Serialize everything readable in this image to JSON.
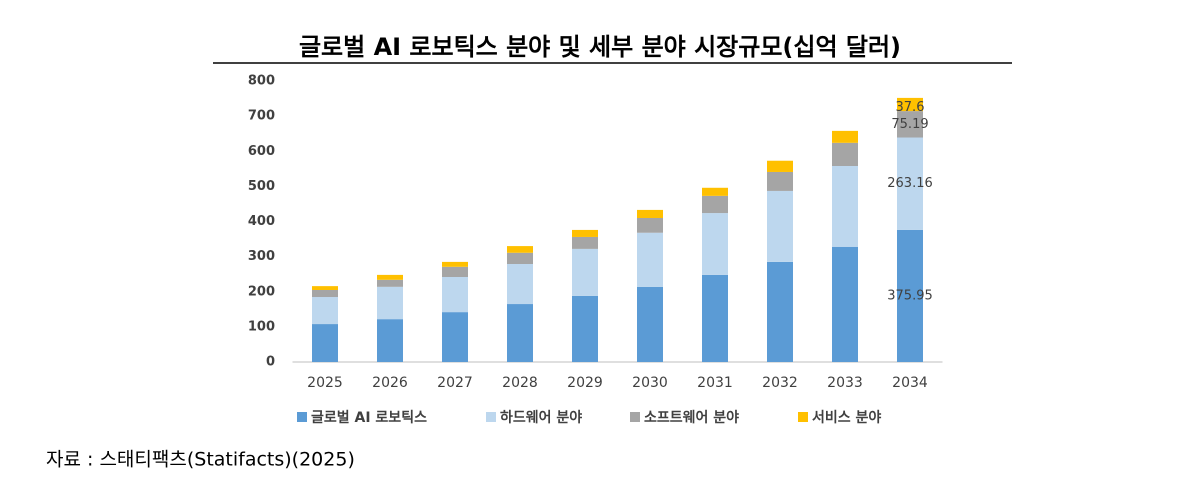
{
  "chart_data": {
    "type": "stacked_bar",
    "title": "글로벌 AI 로보틱스 분야 및 세부 분야 시장규모(십억 달러)",
    "source": "자료 : 스태티팩츠(Statifacts)(2025)",
    "categories": [
      "2025",
      "2026",
      "2027",
      "2028",
      "2029",
      "2030",
      "2031",
      "2032",
      "2033",
      "2034"
    ],
    "series": [
      {
        "name": "글로벌 AI 로보틱스",
        "color": "#5b9bd5",
        "values": [
          108,
          122,
          142,
          165,
          188,
          214,
          248,
          285,
          328,
          375.95
        ]
      },
      {
        "name": "하드웨어 분야",
        "color": "#bdd7ee",
        "values": [
          77,
          92,
          100,
          114,
          134,
          154,
          176,
          202,
          230,
          263.16
        ]
      },
      {
        "name": "소프트웨어 분야",
        "color": "#a5a5a5",
        "values": [
          20,
          20,
          29,
          32,
          34,
          42,
          49,
          54,
          66,
          75.19
        ]
      },
      {
        "name": "서비스 분야",
        "color": "#ffc000",
        "values": [
          11,
          14,
          14,
          19,
          20,
          23,
          23,
          32,
          34,
          37.6
        ]
      }
    ],
    "ylim": [
      0,
      800
    ],
    "yticks": [
      0,
      100,
      200,
      300,
      400,
      500,
      600,
      700,
      800
    ],
    "grid": false,
    "legend": "bottom"
  }
}
